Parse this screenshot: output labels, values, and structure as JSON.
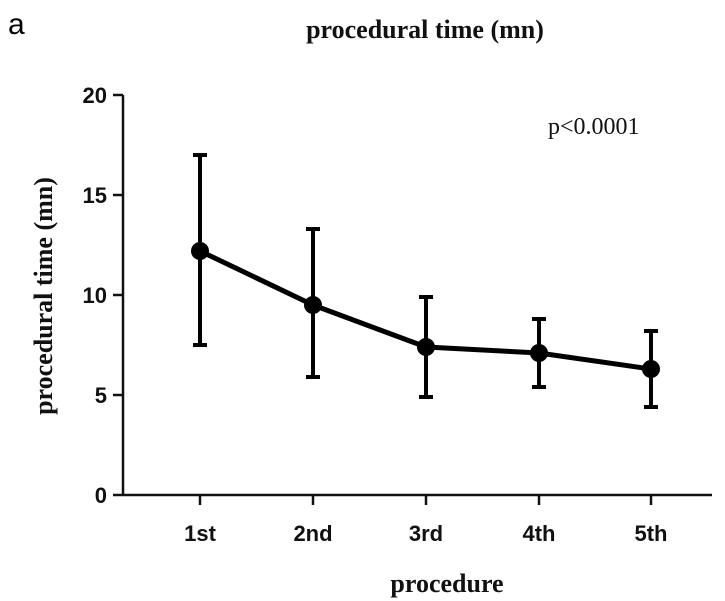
{
  "panel_letter": "a",
  "chart_data": {
    "type": "line",
    "title": "procedural time (mn)",
    "xlabel": "procedure",
    "ylabel": "procedural time (mn)",
    "categories": [
      "1st",
      "2nd",
      "3rd",
      "4th",
      "5th"
    ],
    "series": [
      {
        "values": [
          12.2,
          9.5,
          7.4,
          7.1,
          6.3
        ],
        "error_low": [
          7.5,
          5.9,
          4.9,
          5.4,
          4.4
        ],
        "error_high": [
          17.0,
          13.3,
          9.9,
          8.8,
          8.2
        ]
      }
    ],
    "ylim": [
      0,
      20
    ],
    "yticks": [
      0,
      5,
      10,
      15,
      20
    ],
    "annotation": "p<0.0001",
    "grid": false,
    "legend": "none"
  }
}
